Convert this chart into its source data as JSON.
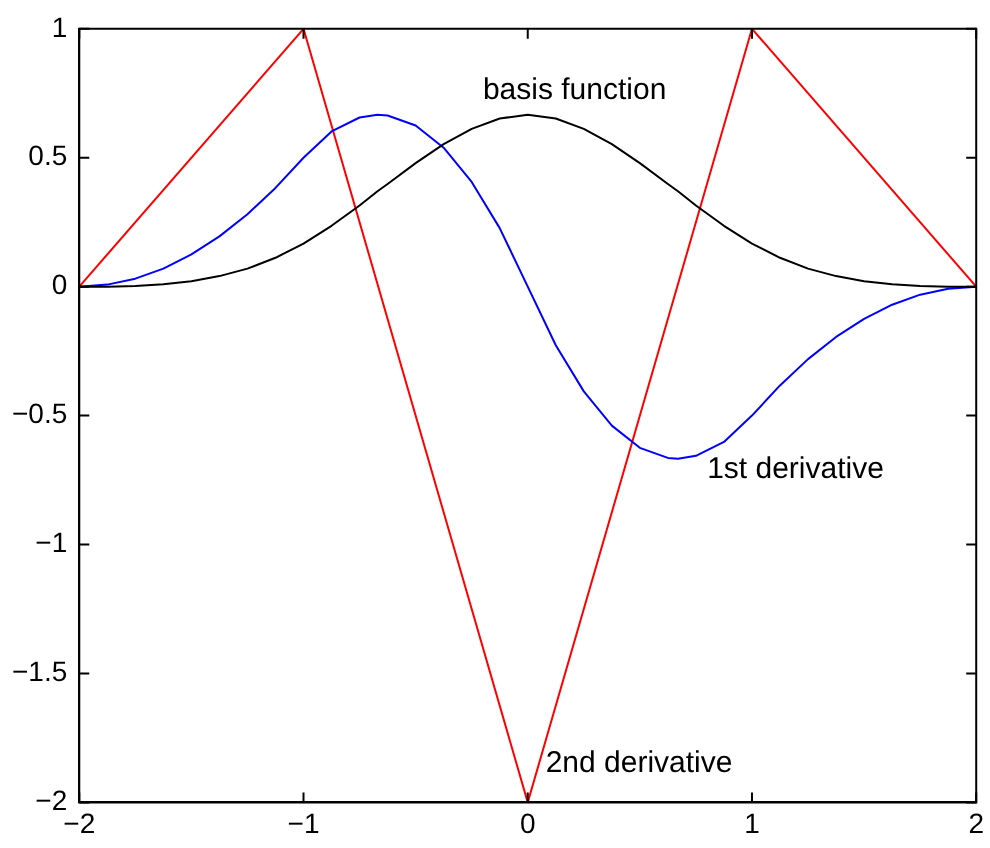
{
  "chart_data": {
    "type": "line",
    "x": [
      -2,
      -1.875,
      -1.75,
      -1.625,
      -1.5,
      -1.375,
      -1.25,
      -1.125,
      -1,
      -0.875,
      -0.75,
      -0.67,
      -0.625,
      -0.5,
      -0.375,
      -0.25,
      -0.125,
      0,
      0.125,
      0.25,
      0.375,
      0.5,
      0.625,
      0.67,
      0.75,
      0.875,
      1,
      1.125,
      1.25,
      1.375,
      1.5,
      1.625,
      1.75,
      1.875,
      2
    ],
    "series": [
      {
        "color": "#000000",
        "values": [
          0,
          0,
          0.003,
          0.009,
          0.021,
          0.041,
          0.07,
          0.112,
          0.167,
          0.236,
          0.315,
          0.37,
          0.398,
          0.479,
          0.553,
          0.612,
          0.652,
          0.667,
          0.652,
          0.612,
          0.553,
          0.479,
          0.398,
          0.37,
          0.315,
          0.236,
          0.167,
          0.112,
          0.07,
          0.041,
          0.021,
          0.009,
          0.003,
          0,
          0
        ]
      },
      {
        "color": "#0000ff",
        "values": [
          0,
          0.008,
          0.031,
          0.07,
          0.125,
          0.195,
          0.281,
          0.383,
          0.5,
          0.602,
          0.656,
          0.667,
          0.664,
          0.625,
          0.539,
          0.406,
          0.227,
          0,
          -0.227,
          -0.406,
          -0.539,
          -0.625,
          -0.664,
          -0.667,
          -0.656,
          -0.602,
          -0.5,
          -0.383,
          -0.281,
          -0.195,
          -0.125,
          -0.07,
          -0.031,
          -0.008,
          0
        ]
      },
      {
        "color": "#ff0000",
        "x": [
          -2,
          -1,
          0,
          1,
          2
        ],
        "values": [
          0,
          1,
          -2,
          1,
          0
        ]
      }
    ],
    "xlim": [
      -2,
      2
    ],
    "xticks": [
      {
        "value": -2,
        "label": "−2"
      },
      {
        "value": -1,
        "label": "−1"
      },
      0,
      1,
      2
    ],
    "ylim": [
      -2,
      1
    ],
    "yticks": [
      {
        "value": -2,
        "label": "−2"
      },
      {
        "value": -1.5,
        "label": "−1.5"
      },
      {
        "value": -1,
        "label": "−1"
      },
      {
        "value": -0.5,
        "label": "−0.5"
      },
      0,
      0.5,
      1
    ],
    "grid": false,
    "legend": false,
    "marker": "none",
    "line_style": "solid",
    "annotations": [
      "basis function",
      "1st derivative",
      "2nd derivative"
    ]
  }
}
